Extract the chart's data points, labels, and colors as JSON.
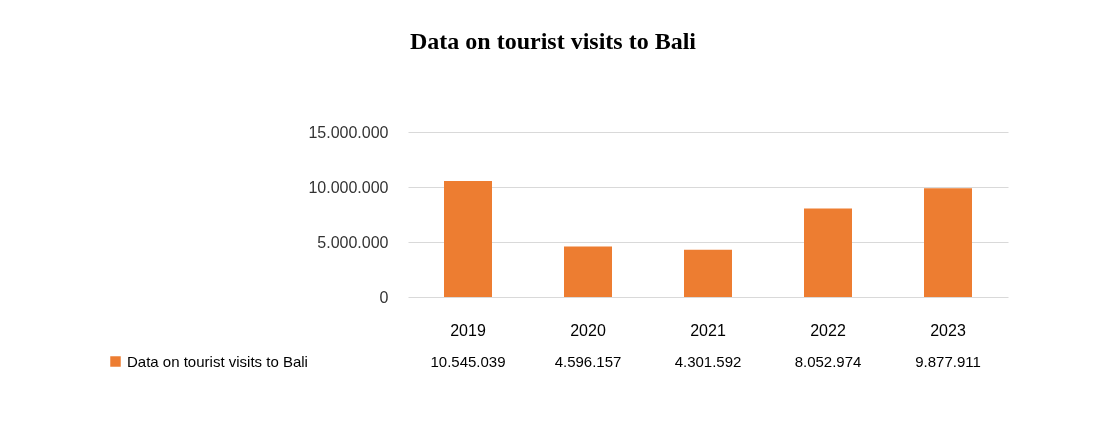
{
  "chart_data": {
    "type": "bar",
    "title": "Data on tourist visits to Bali",
    "categories": [
      "2019",
      "2020",
      "2021",
      "2022",
      "2023"
    ],
    "series": [
      {
        "name": "Data on tourist visits to Bali",
        "color": "#ed7d31",
        "values": [
          10545039,
          4596157,
          4301592,
          8052974,
          9877911
        ],
        "value_labels": [
          "10.545.039",
          "4.596.157",
          "4.301.592",
          "8.052.974",
          "9.877.911"
        ]
      }
    ],
    "ylim": [
      0,
      15000000
    ],
    "yticks": [
      {
        "value": 0,
        "label": "0"
      },
      {
        "value": 5000000,
        "label": "5.000.000"
      },
      {
        "value": 10000000,
        "label": "10.000.000"
      },
      {
        "value": 15000000,
        "label": "15.000.000"
      }
    ],
    "grid": "y",
    "legend": "bottom left"
  }
}
